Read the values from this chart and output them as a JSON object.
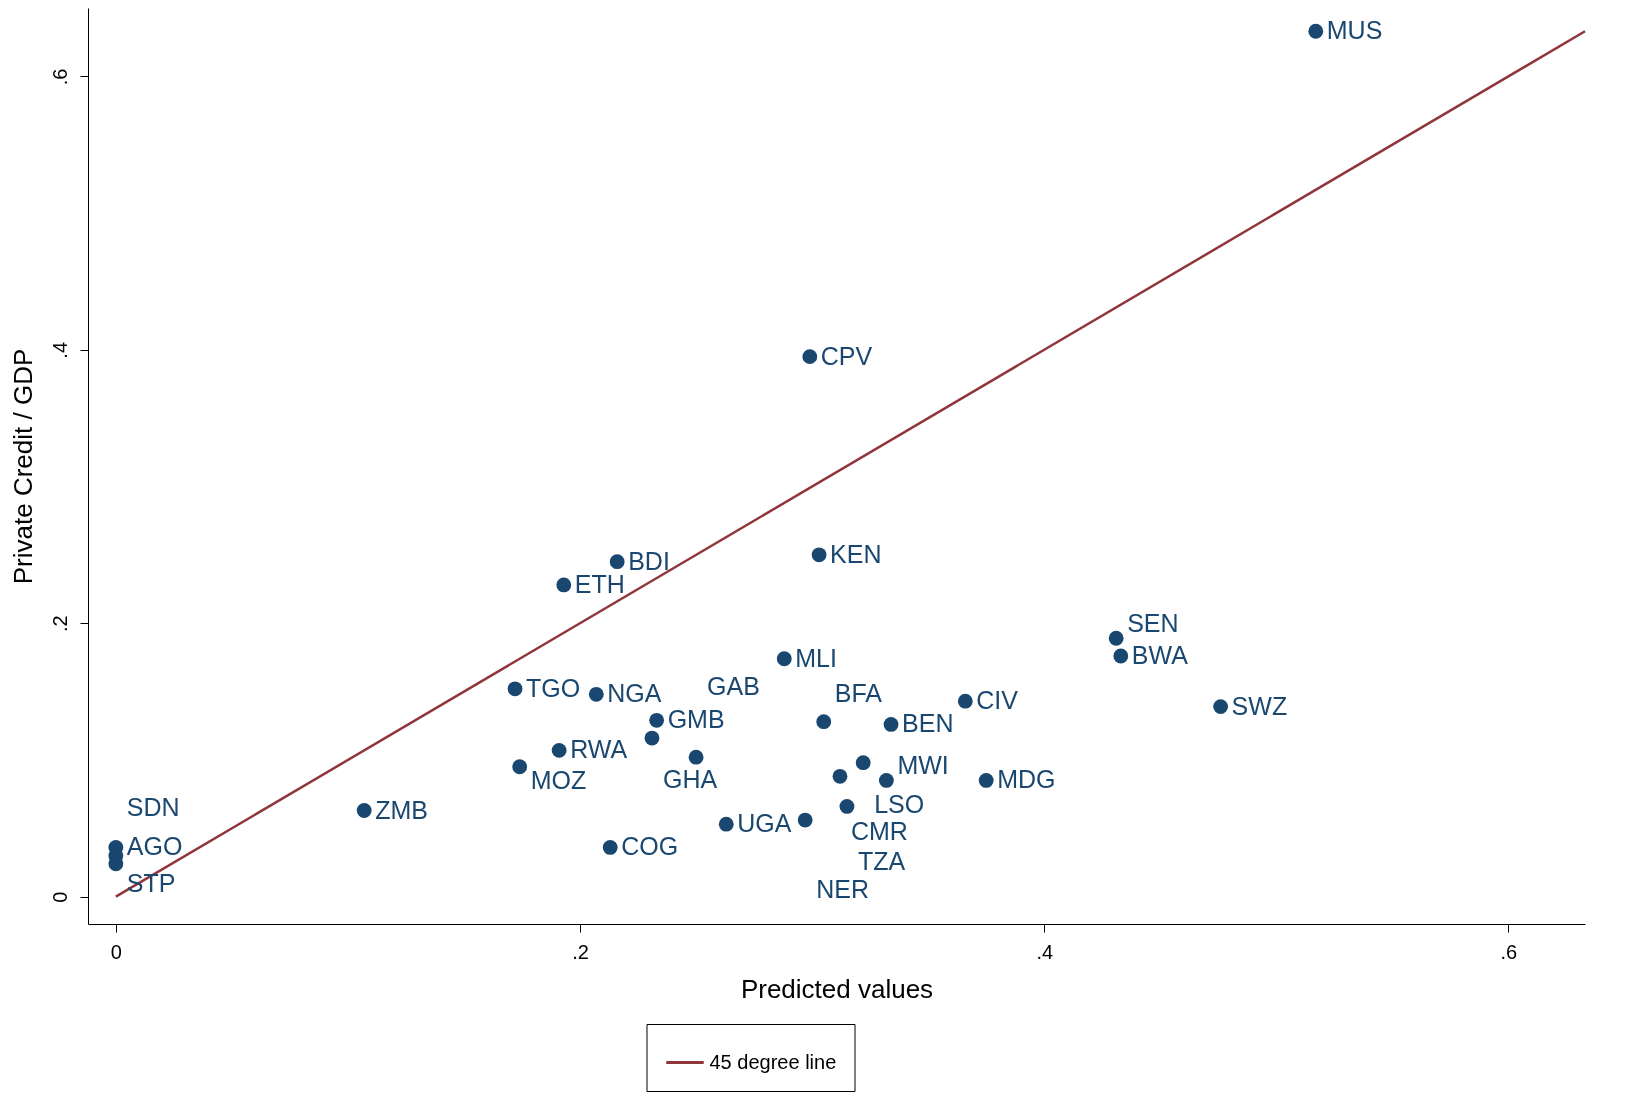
{
  "chart_data": {
    "type": "scatter",
    "xlabel": "Predicted values",
    "ylabel": "Private Credit / GDP",
    "xlim": [
      -0.012,
      0.633
    ],
    "ylim": [
      -0.02,
      0.65
    ],
    "xticks": [
      0,
      {
        "value": 0.2,
        "label": ".2"
      },
      {
        "value": 0.4,
        "label": ".4"
      },
      {
        "value": 0.6,
        "label": ".6"
      }
    ],
    "yticks": [
      0,
      {
        "value": 0.2,
        "label": ".2"
      },
      {
        "value": 0.4,
        "label": ".4"
      },
      {
        "value": 0.6,
        "label": ".6"
      }
    ],
    "grid": false,
    "legend": "bottom",
    "series": [
      {
        "marker": "circle",
        "color": "#1a476f",
        "x": [
          0.517,
          0.299,
          0.303,
          0.216,
          0.193,
          0.431,
          0.433,
          0.288,
          0.172,
          0.207,
          0.366,
          0.476,
          0.233,
          0.305,
          0.334,
          0.231,
          0.191,
          0.25,
          0.174,
          0.322,
          0.312,
          0.332,
          0.375,
          0.315,
          0.107,
          0.263,
          0.297,
          0.213,
          0,
          0,
          0
        ],
        "values": [
          0.633,
          0.395,
          0.25,
          0.245,
          0.228,
          0.189,
          0.176,
          0.174,
          0.152,
          0.148,
          0.143,
          0.139,
          0.129,
          0.128,
          0.126,
          0.116,
          0.107,
          0.102,
          0.095,
          0.098,
          0.088,
          0.085,
          0.085,
          0.066,
          0.063,
          0.053,
          0.056,
          0.036,
          0.036,
          0.03,
          0.024
        ]
      },
      {
        "type": "line",
        "name": "45 degree line",
        "color": "#90353b",
        "x": [
          0,
          0.633
        ],
        "values": [
          0,
          0.633
        ]
      }
    ],
    "annotations": [
      {
        "text": "MUS",
        "x": 0.517,
        "y": 0.633
      },
      {
        "text": "CPV",
        "x": 0.299,
        "y": 0.395
      },
      {
        "text": "KEN",
        "x": 0.303,
        "y": 0.25
      },
      {
        "text": "BDI",
        "x": 0.216,
        "y": 0.245
      },
      {
        "text": "ETH",
        "x": 0.193,
        "y": 0.228
      },
      {
        "text": "SEN",
        "x": 0.431,
        "y": 0.189
      },
      {
        "text": "BWA",
        "x": 0.433,
        "y": 0.176
      },
      {
        "text": "MLI",
        "x": 0.288,
        "y": 0.174
      },
      {
        "text": "TGO",
        "x": 0.172,
        "y": 0.152
      },
      {
        "text": "NGA",
        "x": 0.207,
        "y": 0.148
      },
      {
        "text": "CIV",
        "x": 0.366,
        "y": 0.143
      },
      {
        "text": "SWZ",
        "x": 0.476,
        "y": 0.139
      },
      {
        "text": "GMB",
        "x": 0.233,
        "y": 0.129
      },
      {
        "text": "BFA",
        "x": 0.305,
        "y": 0.128
      },
      {
        "text": "BEN",
        "x": 0.334,
        "y": 0.126
      },
      {
        "text": "GHA",
        "x": 0.231,
        "y": 0.116
      },
      {
        "text": "RWA",
        "x": 0.191,
        "y": 0.107
      },
      {
        "text": "GAB",
        "x": 0.25,
        "y": 0.102
      },
      {
        "text": "MOZ",
        "x": 0.174,
        "y": 0.095
      },
      {
        "text": "LSO",
        "x": 0.322,
        "y": 0.098
      },
      {
        "text": "CMR",
        "x": 0.312,
        "y": 0.088
      },
      {
        "text": "MWI",
        "x": 0.332,
        "y": 0.085
      },
      {
        "text": "MDG",
        "x": 0.375,
        "y": 0.085
      },
      {
        "text": "TZA",
        "x": 0.315,
        "y": 0.066
      },
      {
        "text": "ZMB",
        "x": 0.107,
        "y": 0.063
      },
      {
        "text": "UGA",
        "x": 0.263,
        "y": 0.053
      },
      {
        "text": "NER",
        "x": 0.297,
        "y": 0.056
      },
      {
        "text": "COG",
        "x": 0.213,
        "y": 0.036
      },
      {
        "text": "AGO",
        "x": 0,
        "y": 0.036
      },
      {
        "text": "STP",
        "x": 0,
        "y": 0.03
      },
      {
        "text": "SDN",
        "x": 0,
        "y": 0.024
      }
    ]
  }
}
